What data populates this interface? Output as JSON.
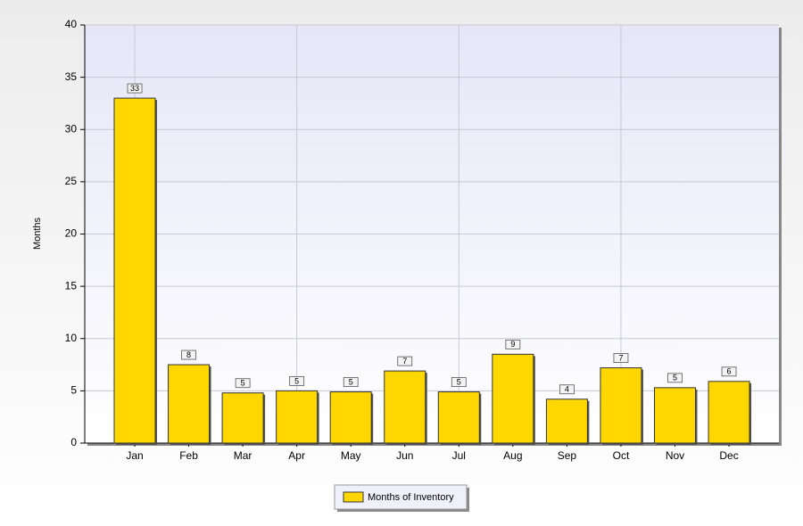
{
  "chart_data": {
    "type": "bar",
    "y_label": "Months",
    "categories": [
      "Jan",
      "Feb",
      "Mar",
      "Apr",
      "May",
      "Jun",
      "Jul",
      "Aug",
      "Sep",
      "Oct",
      "Nov",
      "Dec"
    ],
    "series": [
      {
        "name": "Months of Inventory",
        "color": "#ffd700",
        "values": [
          33,
          7.5,
          4.8,
          5,
          4.9,
          6.9,
          4.9,
          8.5,
          4.2,
          7.2,
          5.3,
          5.9
        ],
        "value_labels": [
          "33",
          "8",
          "5",
          "5",
          "5",
          "7",
          "5",
          "9",
          "4",
          "7",
          "5",
          "6"
        ]
      }
    ],
    "ylim": [
      0,
      40
    ],
    "yticks": [
      0,
      5,
      10,
      15,
      20,
      25,
      30,
      35,
      40
    ],
    "grid": true
  }
}
